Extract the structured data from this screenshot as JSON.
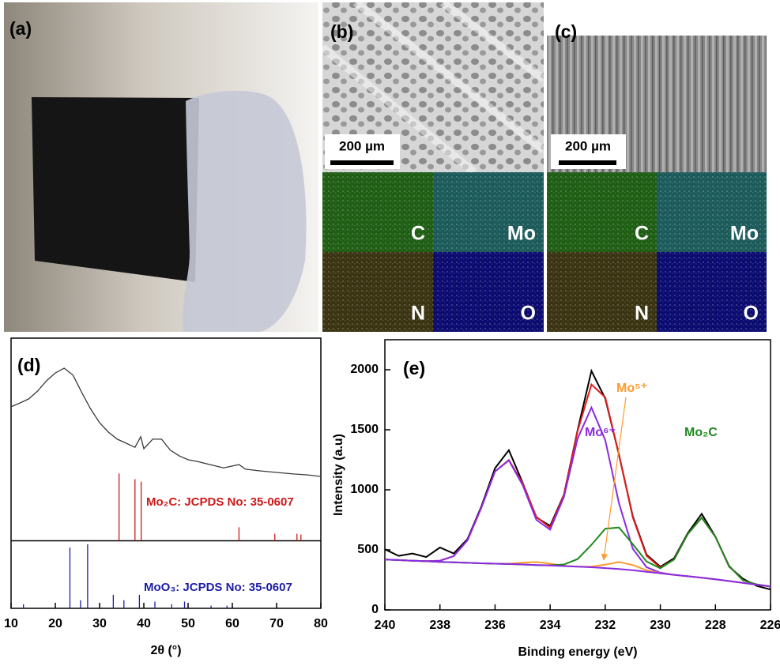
{
  "figure": {
    "a": {
      "label": "(a)"
    },
    "b": {
      "label": "(b)",
      "scale_bar": "200 µm",
      "maps": [
        "C",
        "Mo",
        "N",
        "O"
      ]
    },
    "c": {
      "label": "(c)",
      "scale_bar": "200 µm",
      "maps": [
        "C",
        "Mo",
        "N",
        "O"
      ]
    }
  },
  "chart_data": [
    {
      "type": "line",
      "panel_label": "(d)",
      "xlabel": "2θ (°)",
      "xlim": [
        10,
        80
      ],
      "xticks": [
        10,
        20,
        30,
        40,
        50,
        60,
        70,
        80
      ],
      "ylim": [
        0,
        100
      ],
      "section_divider": 25,
      "x": [
        10,
        12,
        14,
        16,
        18,
        20,
        22,
        24,
        26,
        28,
        30,
        32,
        34,
        36,
        38,
        39.3,
        40,
        42,
        44,
        46,
        48,
        50,
        52,
        55,
        58,
        61.5,
        63,
        66,
        70,
        74,
        77,
        80
      ],
      "values": [
        74.6,
        76,
        77.5,
        80.4,
        84.2,
        87.1,
        88.9,
        86.3,
        79.8,
        73.7,
        68.7,
        65.2,
        62.6,
        61.1,
        59.6,
        63.5,
        59.1,
        62.6,
        62.6,
        58.5,
        56.4,
        55,
        54.4,
        53.2,
        52,
        53.2,
        51.5,
        50.9,
        50.3,
        49.7,
        49.4,
        48.8
      ],
      "color": "#3a3a3a",
      "references": [
        {
          "name": "Mo₂C: JCPDS No: 35-0607",
          "color": "#cc1a1a",
          "positions": [
            34.4,
            38.0,
            39.4,
            61.5,
            69.6,
            74.6,
            75.5
          ],
          "values": [
            24.9,
            22.8,
            21.9,
            5,
            2.6,
            2.6,
            2.3
          ]
        },
        {
          "name": "MoO₃: JCPDS No: 35-0607",
          "color": "#1c1ca8",
          "positions": [
            12.8,
            23.3,
            25.7,
            27.3,
            33.1,
            35.5,
            39.0,
            42.5,
            46.3,
            49.2,
            55.2,
            58.8
          ],
          "values": [
            1.5,
            22.5,
            3,
            23.7,
            5,
            3,
            5,
            2.5,
            1.5,
            2.5,
            1,
            1
          ]
        }
      ]
    },
    {
      "type": "line",
      "panel_label": "(e)",
      "xlabel": "Binding energy (eV)",
      "ylabel": "Intensity (a.u)",
      "xlim": [
        240,
        226
      ],
      "xticks": [
        240,
        238,
        236,
        234,
        232,
        230,
        228,
        226
      ],
      "ylim": [
        0,
        2250
      ],
      "yticks": [
        0,
        500,
        1000,
        1500,
        2000
      ],
      "x": [
        240,
        239.5,
        239,
        238.5,
        238,
        237.5,
        237,
        236.5,
        236,
        235.5,
        235,
        234.5,
        234,
        233.5,
        233,
        232.5,
        232,
        231.5,
        231,
        230.5,
        230,
        229.5,
        229,
        228.5,
        228,
        227.5,
        227,
        226.5,
        226
      ],
      "series": [
        {
          "color": "#000000",
          "values": [
            505,
            450,
            470,
            440,
            520,
            470,
            590,
            860,
            1180,
            1330,
            1060,
            770,
            700,
            960,
            1500,
            1990,
            1760,
            1290,
            780,
            460,
            360,
            430,
            640,
            800,
            610,
            360,
            260,
            200,
            170
          ]
        },
        {
          "color": "#e01a1a",
          "values": [
            420,
            415,
            410,
            406,
            410,
            448,
            580,
            850,
            1153,
            1248,
            1055,
            775,
            685,
            956,
            1493,
            1877,
            1770,
            1292,
            772,
            451,
            352,
            420,
            633,
            768,
            608,
            365,
            247,
            212,
            195
          ]
        },
        {
          "name": "Mo⁶⁺",
          "color": "#8a2be2",
          "values": [
            420,
            415,
            410,
            406,
            410,
            448,
            580,
            850,
            1153,
            1245,
            1040,
            750,
            668,
            940,
            1429,
            1685,
            1413,
            887,
            510,
            356,
            310,
            292,
            280,
            268,
            255,
            240,
            225,
            210,
            195
          ]
        },
        {
          "name": "Mo⁵⁺",
          "color": "#ff9a2e",
          "values": [
            420,
            415,
            410,
            405,
            400,
            396,
            392,
            388,
            385,
            385,
            393,
            399,
            385,
            368,
            360,
            360,
            377,
            399,
            374,
            330,
            306,
            292,
            280,
            268,
            255,
            240,
            225,
            210,
            195
          ]
        },
        {
          "name": "Mo₂C",
          "color": "#1f8a1f",
          "values": [
            420,
            415,
            410,
            405,
            400,
            396,
            392,
            388,
            385,
            382,
            378,
            374,
            372,
            378,
            424,
            542,
            676,
            686,
            548,
            403,
            346,
            420,
            633,
            768,
            608,
            365,
            247,
            212,
            195
          ]
        },
        {
          "color": "#8a2be2",
          "values": [
            420,
            415,
            410,
            405,
            400,
            396,
            392,
            388,
            385,
            382,
            378,
            374,
            370,
            365,
            360,
            355,
            348,
            340,
            330,
            318,
            305,
            292,
            280,
            268,
            255,
            240,
            225,
            210,
            195
          ]
        }
      ]
    }
  ]
}
